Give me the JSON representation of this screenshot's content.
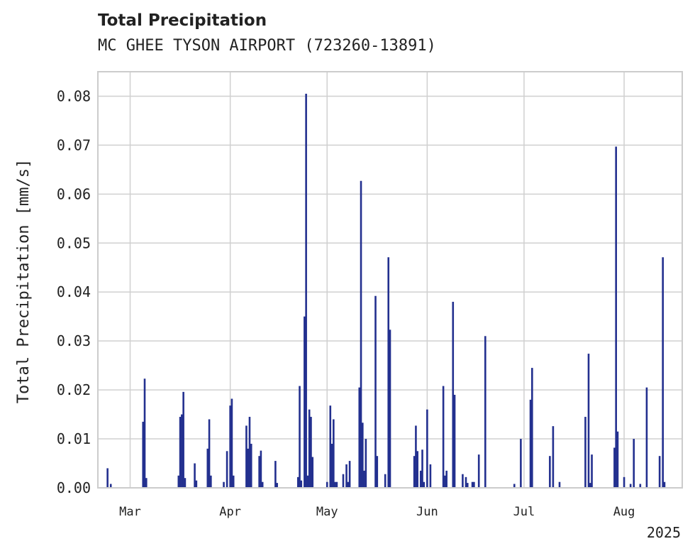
{
  "title": "Total Precipitation",
  "subtitle": "MC GHEE TYSON AIRPORT (723260-13891)",
  "chart_data": {
    "type": "bar",
    "ylabel": "Total Precipitation [mm/s]",
    "ylim": [
      0,
      0.085
    ],
    "xlim": [
      "2025-02-19",
      "2025-08-19"
    ],
    "year_label": "2025",
    "grid": true,
    "color": "#23308f",
    "y_ticks": [
      "0.00",
      "0.01",
      "0.02",
      "0.03",
      "0.04",
      "0.05",
      "0.06",
      "0.07",
      "0.08"
    ],
    "x_ticks": [
      {
        "date": "2025-03-01",
        "label": "Mar"
      },
      {
        "date": "2025-04-01",
        "label": "Apr"
      },
      {
        "date": "2025-05-01",
        "label": "May"
      },
      {
        "date": "2025-06-01",
        "label": "Jun"
      },
      {
        "date": "2025-07-01",
        "label": "Jul"
      },
      {
        "date": "2025-08-01",
        "label": "Aug"
      }
    ],
    "points": [
      [
        "2025-02-22",
        0.004
      ],
      [
        "2025-02-23",
        0.0008
      ],
      [
        "2025-03-05",
        0.0135
      ],
      [
        "2025-03-05T12",
        0.0223
      ],
      [
        "2025-03-06",
        0.002
      ],
      [
        "2025-03-16",
        0.0025
      ],
      [
        "2025-03-16T12",
        0.0145
      ],
      [
        "2025-03-17",
        0.015
      ],
      [
        "2025-03-17T12",
        0.0196
      ],
      [
        "2025-03-18",
        0.002
      ],
      [
        "2025-03-21",
        0.005
      ],
      [
        "2025-03-21T12",
        0.0015
      ],
      [
        "2025-03-25",
        0.008
      ],
      [
        "2025-03-25T12",
        0.014
      ],
      [
        "2025-03-26",
        0.0025
      ],
      [
        "2025-03-30",
        0.0012
      ],
      [
        "2025-03-31",
        0.0075
      ],
      [
        "2025-04-01",
        0.0168
      ],
      [
        "2025-04-01T12",
        0.0182
      ],
      [
        "2025-04-02",
        0.0025
      ],
      [
        "2025-04-06",
        0.0127
      ],
      [
        "2025-04-06T12",
        0.008
      ],
      [
        "2025-04-07",
        0.0145
      ],
      [
        "2025-04-07T12",
        0.009
      ],
      [
        "2025-04-10",
        0.0065
      ],
      [
        "2025-04-10T12",
        0.0076
      ],
      [
        "2025-04-11",
        0.0012
      ],
      [
        "2025-04-15",
        0.0055
      ],
      [
        "2025-04-15T12",
        0.001
      ],
      [
        "2025-04-22",
        0.0022
      ],
      [
        "2025-04-22T12",
        0.0208
      ],
      [
        "2025-04-23",
        0.0015
      ],
      [
        "2025-04-24",
        0.035
      ],
      [
        "2025-04-24T12",
        0.0805
      ],
      [
        "2025-04-25",
        0.0025
      ],
      [
        "2025-04-25T12",
        0.016
      ],
      [
        "2025-04-26",
        0.0145
      ],
      [
        "2025-04-26T12",
        0.0063
      ],
      [
        "2025-05-01",
        0.0012
      ],
      [
        "2025-05-02",
        0.0168
      ],
      [
        "2025-05-02T12",
        0.009
      ],
      [
        "2025-05-03",
        0.014
      ],
      [
        "2025-05-03T12",
        0.0012
      ],
      [
        "2025-05-04",
        0.0012
      ],
      [
        "2025-05-06",
        0.0028
      ],
      [
        "2025-05-07",
        0.0048
      ],
      [
        "2025-05-07T12",
        0.0012
      ],
      [
        "2025-05-08",
        0.0055
      ],
      [
        "2025-05-11",
        0.0205
      ],
      [
        "2025-05-11T12",
        0.0627
      ],
      [
        "2025-05-12",
        0.0133
      ],
      [
        "2025-05-12T12",
        0.0035
      ],
      [
        "2025-05-13",
        0.01
      ],
      [
        "2025-05-16",
        0.0392
      ],
      [
        "2025-05-16T12",
        0.0065
      ],
      [
        "2025-05-19",
        0.0028
      ],
      [
        "2025-05-20",
        0.0471
      ],
      [
        "2025-05-20T12",
        0.0323
      ],
      [
        "2025-05-28",
        0.0065
      ],
      [
        "2025-05-28T12",
        0.0127
      ],
      [
        "2025-05-29",
        0.0075
      ],
      [
        "2025-05-30",
        0.0035
      ],
      [
        "2025-05-30T12",
        0.0078
      ],
      [
        "2025-05-31",
        0.0012
      ],
      [
        "2025-06-01",
        0.016
      ],
      [
        "2025-06-02",
        0.0048
      ],
      [
        "2025-06-06",
        0.0208
      ],
      [
        "2025-06-06T12",
        0.0025
      ],
      [
        "2025-06-07",
        0.0035
      ],
      [
        "2025-06-09",
        0.038
      ],
      [
        "2025-06-09T12",
        0.019
      ],
      [
        "2025-06-12",
        0.0028
      ],
      [
        "2025-06-13",
        0.0022
      ],
      [
        "2025-06-13T12",
        0.001
      ],
      [
        "2025-06-15",
        0.0012
      ],
      [
        "2025-06-15T12",
        0.0012
      ],
      [
        "2025-06-17",
        0.0068
      ],
      [
        "2025-06-19",
        0.031
      ],
      [
        "2025-06-28",
        0.0008
      ],
      [
        "2025-06-30",
        0.01
      ],
      [
        "2025-07-03",
        0.018
      ],
      [
        "2025-07-03T12",
        0.0245
      ],
      [
        "2025-07-09",
        0.0065
      ],
      [
        "2025-07-10",
        0.0126
      ],
      [
        "2025-07-12",
        0.0012
      ],
      [
        "2025-07-20",
        0.0145
      ],
      [
        "2025-07-21",
        0.0274
      ],
      [
        "2025-07-21T12",
        0.001
      ],
      [
        "2025-07-22",
        0.0068
      ],
      [
        "2025-07-29",
        0.0082
      ],
      [
        "2025-07-29T12",
        0.0697
      ],
      [
        "2025-07-30",
        0.0115
      ],
      [
        "2025-08-01",
        0.0022
      ],
      [
        "2025-08-03",
        0.0008
      ],
      [
        "2025-08-04",
        0.01
      ],
      [
        "2025-08-06",
        0.0008
      ],
      [
        "2025-08-08",
        0.0205
      ],
      [
        "2025-08-12",
        0.0065
      ],
      [
        "2025-08-13",
        0.0471
      ],
      [
        "2025-08-13T12",
        0.0012
      ]
    ]
  }
}
